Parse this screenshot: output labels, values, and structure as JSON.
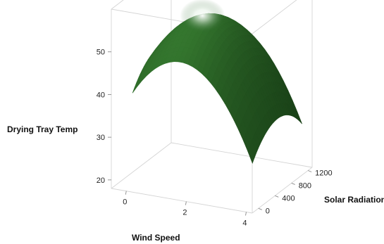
{
  "chart_data": {
    "type": "surface",
    "xlabel": "Wind Speed",
    "ylabel": "Solar Radiation",
    "zlabel": "Drying Tray Temp",
    "x_ticks": [
      0,
      2,
      4
    ],
    "y_ticks": [
      0,
      400,
      800,
      1200
    ],
    "z_ticks": [
      20,
      30,
      40,
      50
    ],
    "xlim": [
      -0.5,
      4.2
    ],
    "ylim": [
      -150,
      1300
    ],
    "zlim": [
      18,
      60
    ],
    "grid": true,
    "colors": {
      "surface_base": "#2f6b2f",
      "surface_dark": "#0f2e0f",
      "highlight": "#ffffff",
      "frame": "#d4d4d4"
    },
    "corner_values": [
      {
        "wind_speed": 0,
        "solar_radiation": 0,
        "temp": 45
      },
      {
        "wind_speed": 0,
        "solar_radiation": 1200,
        "temp": 51
      },
      {
        "wind_speed": 4,
        "solar_radiation": 0,
        "temp": 20
      },
      {
        "wind_speed": 4,
        "solar_radiation": 1200,
        "temp": 27
      }
    ],
    "peak": {
      "wind_speed": 1.6,
      "solar_radiation": 600,
      "temp": 55
    }
  }
}
